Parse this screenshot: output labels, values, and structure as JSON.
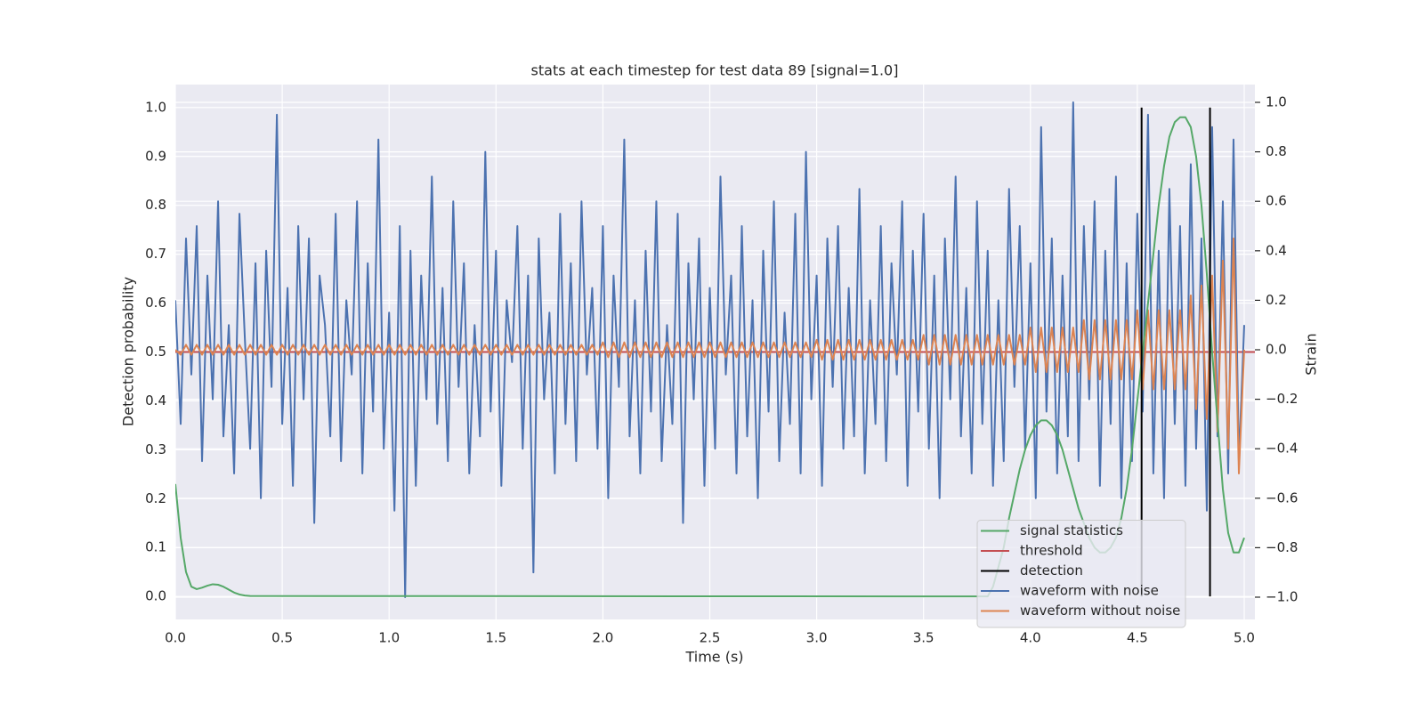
{
  "chart_data": {
    "type": "line",
    "title": "stats at each timestep for test data 89 [signal=1.0]",
    "xlabel": "Time (s)",
    "ylabel": "Detection probability",
    "y2label": "Strain",
    "xlim": [
      0,
      5.05
    ],
    "ylim": [
      -0.047,
      1.047
    ],
    "y2lim": [
      -1.09,
      1.072
    ],
    "xticks": [
      {
        "value": 0,
        "label": "0.0"
      },
      0.5,
      {
        "value": 1,
        "label": "1.0"
      },
      1.5,
      {
        "value": 2,
        "label": "2.0"
      },
      2.5,
      {
        "value": 3,
        "label": "3.0"
      },
      3.5,
      {
        "value": 4,
        "label": "4.0"
      },
      4.5,
      {
        "value": 5,
        "label": "5.0"
      }
    ],
    "yticks": [
      {
        "value": 0,
        "label": "0.0"
      },
      0.1,
      0.2,
      0.3,
      0.4,
      0.5,
      0.6,
      0.7,
      0.8,
      0.9,
      {
        "value": 1,
        "label": "1.0"
      }
    ],
    "y2ticks": [
      {
        "value": -1,
        "label": "−1.0"
      },
      {
        "value": -0.8,
        "label": "−0.8"
      },
      {
        "value": -0.6,
        "label": "−0.6"
      },
      {
        "value": -0.4,
        "label": "−0.4"
      },
      {
        "value": -0.2,
        "label": "−0.2"
      },
      {
        "value": 0,
        "label": "0.0"
      },
      0.2,
      0.4,
      0.6,
      0.8,
      {
        "value": 1,
        "label": "1.0"
      }
    ],
    "grid": true,
    "legend": "lower right",
    "x": [
      0,
      0.025,
      0.05,
      0.075,
      0.1,
      0.125,
      0.15,
      0.175,
      0.2,
      0.225,
      0.25,
      0.275,
      0.3,
      0.325,
      0.35,
      0.375,
      0.4,
      0.425,
      0.45,
      0.475,
      0.5,
      0.525,
      0.55,
      0.575,
      0.6,
      0.625,
      0.65,
      0.675,
      0.7,
      0.725,
      0.75,
      0.775,
      0.8,
      0.825,
      0.85,
      0.875,
      0.9,
      0.925,
      0.95,
      0.975,
      1,
      1.025,
      1.05,
      1.075,
      1.1,
      1.125,
      1.15,
      1.175,
      1.2,
      1.225,
      1.25,
      1.275,
      1.3,
      1.325,
      1.35,
      1.375,
      1.4,
      1.425,
      1.45,
      1.475,
      1.5,
      1.525,
      1.55,
      1.575,
      1.6,
      1.625,
      1.65,
      1.675,
      1.7,
      1.725,
      1.75,
      1.775,
      1.8,
      1.825,
      1.85,
      1.875,
      1.9,
      1.925,
      1.95,
      1.975,
      2,
      2.025,
      2.05,
      2.075,
      2.1,
      2.125,
      2.15,
      2.175,
      2.2,
      2.225,
      2.25,
      2.275,
      2.3,
      2.325,
      2.35,
      2.375,
      2.4,
      2.425,
      2.45,
      2.475,
      2.5,
      2.525,
      2.55,
      2.575,
      2.6,
      2.625,
      2.65,
      2.675,
      2.7,
      2.725,
      2.75,
      2.775,
      2.8,
      2.825,
      2.85,
      2.875,
      2.9,
      2.925,
      2.95,
      2.975,
      3,
      3.025,
      3.05,
      3.075,
      3.1,
      3.125,
      3.15,
      3.175,
      3.2,
      3.225,
      3.25,
      3.275,
      3.3,
      3.325,
      3.35,
      3.375,
      3.4,
      3.425,
      3.45,
      3.475,
      3.5,
      3.525,
      3.55,
      3.575,
      3.6,
      3.625,
      3.65,
      3.675,
      3.7,
      3.725,
      3.75,
      3.775,
      3.8,
      3.825,
      3.85,
      3.875,
      3.9,
      3.925,
      3.95,
      3.975,
      4,
      4.025,
      4.05,
      4.075,
      4.1,
      4.125,
      4.15,
      4.175,
      4.2,
      4.225,
      4.25,
      4.275,
      4.3,
      4.325,
      4.35,
      4.375,
      4.4,
      4.425,
      4.45,
      4.475,
      4.5,
      4.525,
      4.55,
      4.575,
      4.6,
      4.625,
      4.65,
      4.675,
      4.7,
      4.725,
      4.75,
      4.775,
      4.8,
      4.825,
      4.85,
      4.875,
      4.9,
      4.925,
      4.95,
      4.975,
      5
    ],
    "series": [
      {
        "name": "signal statistics",
        "color": "#55a868",
        "x": [
          0,
          0.025,
          0.05,
          0.075,
          0.1,
          0.125,
          0.15,
          0.175,
          0.2,
          0.225,
          0.25,
          0.275,
          0.3,
          0.325,
          0.35,
          3.8,
          3.825,
          3.85,
          3.875,
          3.9,
          3.925,
          3.95,
          3.975,
          4,
          4.025,
          4.05,
          4.075,
          4.1,
          4.125,
          4.15,
          4.175,
          4.2,
          4.225,
          4.25,
          4.275,
          4.3,
          4.325,
          4.35,
          4.375,
          4.4,
          4.425,
          4.45,
          4.475,
          4.5,
          4.525,
          4.55,
          4.575,
          4.6,
          4.625,
          4.65,
          4.675,
          4.7,
          4.725,
          4.75,
          4.775,
          4.8,
          4.825,
          4.85,
          4.875,
          4.9,
          4.925,
          4.95,
          4.975,
          5
        ],
        "values": [
          0.23,
          0.12,
          0.05,
          0.02,
          0.015,
          0.018,
          0.022,
          0.025,
          0.024,
          0.02,
          0.014,
          0.008,
          0.004,
          0.002,
          0.001,
          0,
          0.02,
          0.06,
          0.1,
          0.16,
          0.21,
          0.26,
          0.3,
          0.33,
          0.35,
          0.36,
          0.36,
          0.35,
          0.33,
          0.3,
          0.26,
          0.22,
          0.18,
          0.15,
          0.12,
          0.1,
          0.09,
          0.09,
          0.1,
          0.12,
          0.16,
          0.22,
          0.3,
          0.4,
          0.5,
          0.6,
          0.7,
          0.8,
          0.88,
          0.94,
          0.97,
          0.98,
          0.98,
          0.96,
          0.9,
          0.8,
          0.66,
          0.5,
          0.36,
          0.22,
          0.13,
          0.09,
          0.09,
          0.12
        ]
      },
      {
        "name": "threshold",
        "color": "#c44e52",
        "x": [
          0,
          5.05
        ],
        "values": [
          0.5,
          0.5
        ]
      },
      {
        "name": "detection",
        "color": "#000000",
        "x": [
          4.52,
          4.84
        ],
        "ymin": [
          0,
          0
        ],
        "ymax": [
          1,
          1
        ]
      },
      {
        "name": "waveform with noise",
        "color": "#4c72b0",
        "axis": "y2",
        "values": [
          0.2,
          -0.3,
          0.45,
          -0.1,
          0.5,
          -0.45,
          0.3,
          -0.2,
          0.6,
          -0.35,
          0.1,
          -0.5,
          0.55,
          0.05,
          -0.4,
          0.35,
          -0.6,
          0.4,
          -0.15,
          0.95,
          -0.3,
          0.25,
          -0.55,
          0.5,
          -0.2,
          0.45,
          -0.7,
          0.3,
          0.1,
          -0.35,
          0.55,
          -0.45,
          0.2,
          -0.1,
          0.6,
          -0.5,
          0.35,
          -0.25,
          0.85,
          -0.4,
          0.15,
          -0.65,
          0.5,
          -1.0,
          0.4,
          -0.55,
          0.3,
          -0.2,
          0.7,
          -0.3,
          0.25,
          -0.45,
          0.6,
          -0.15,
          0.35,
          -0.5,
          0.1,
          -0.35,
          0.8,
          -0.25,
          0.4,
          -0.55,
          0.2,
          -0.05,
          0.5,
          -0.4,
          0.3,
          -0.9,
          0.45,
          -0.2,
          0.15,
          -0.5,
          0.55,
          -0.3,
          0.35,
          -0.45,
          0.6,
          -0.1,
          0.25,
          -0.4,
          0.5,
          -0.6,
          0.3,
          -0.15,
          0.85,
          -0.35,
          0.2,
          -0.5,
          0.4,
          -0.25,
          0.6,
          -0.45,
          0.1,
          -0.3,
          0.55,
          -0.7,
          0.35,
          -0.2,
          0.45,
          -0.55,
          0.25,
          -0.4,
          0.7,
          -0.1,
          0.3,
          -0.5,
          0.5,
          -0.35,
          0.2,
          -0.6,
          0.4,
          -0.25,
          0.6,
          -0.45,
          0.15,
          -0.3,
          0.55,
          -0.5,
          0.8,
          -0.2,
          0.3,
          -0.55,
          0.45,
          -0.15,
          0.5,
          -0.4,
          0.25,
          -0.35,
          0.65,
          -0.5,
          0.2,
          -0.3,
          0.5,
          -0.45,
          0.35,
          -0.1,
          0.6,
          -0.55,
          0.4,
          -0.25,
          0.55,
          -0.4,
          0.3,
          -0.6,
          0.45,
          -0.2,
          0.7,
          -0.35,
          0.25,
          -0.5,
          0.6,
          -0.3,
          0.4,
          -0.55,
          0.2,
          -0.45,
          0.65,
          -0.15,
          0.5,
          -0.4,
          0.35,
          -0.6,
          0.9,
          -0.25,
          0.45,
          -0.5,
          0.3,
          -0.35,
          1.0,
          -0.45,
          0.5,
          -0.2,
          0.6,
          -0.55,
          0.4,
          -0.3,
          0.7,
          -0.6,
          0.35,
          -0.45,
          0.55,
          -0.25,
          0.95,
          -0.5,
          0.4,
          -0.6,
          0.65,
          -0.3,
          0.5,
          -0.55,
          0.75,
          -0.4,
          0.45,
          -0.65,
          0.9,
          -0.35,
          0.6,
          -0.5,
          0.85,
          -0.45,
          0.1
        ]
      },
      {
        "name": "waveform without noise",
        "color": "#dd8452",
        "axis": "y2",
        "values": [
          0,
          -0.02,
          0.02,
          -0.02,
          0.02,
          -0.02,
          0.02,
          -0.02,
          0.02,
          -0.02,
          0.02,
          -0.02,
          0.02,
          -0.02,
          0.02,
          -0.02,
          0.02,
          -0.02,
          0.02,
          -0.02,
          0.02,
          -0.02,
          0.02,
          -0.02,
          0.02,
          -0.02,
          0.02,
          -0.02,
          0.02,
          -0.02,
          0.02,
          -0.02,
          0.02,
          -0.02,
          0.02,
          -0.02,
          0.02,
          -0.02,
          0.02,
          -0.02,
          0.02,
          -0.02,
          0.02,
          -0.02,
          0.02,
          -0.02,
          0.02,
          -0.02,
          0.02,
          -0.02,
          0.02,
          -0.02,
          0.02,
          -0.02,
          0.02,
          -0.02,
          0.02,
          -0.02,
          0.02,
          -0.02,
          0.02,
          -0.02,
          0.02,
          -0.02,
          0.02,
          -0.02,
          0.02,
          -0.02,
          0.02,
          -0.02,
          0.02,
          -0.02,
          0.02,
          -0.02,
          0.02,
          -0.02,
          0.02,
          -0.02,
          0.02,
          -0.02,
          0.03,
          -0.03,
          0.03,
          -0.03,
          0.03,
          -0.03,
          0.03,
          -0.03,
          0.03,
          -0.03,
          0.03,
          -0.03,
          0.03,
          -0.03,
          0.03,
          -0.03,
          0.03,
          -0.03,
          0.03,
          -0.03,
          0.03,
          -0.03,
          0.03,
          -0.03,
          0.03,
          -0.03,
          0.03,
          -0.03,
          0.03,
          -0.03,
          0.03,
          -0.03,
          0.03,
          -0.03,
          0.03,
          -0.03,
          0.03,
          -0.03,
          0.03,
          -0.03,
          0.04,
          -0.04,
          0.04,
          -0.04,
          0.04,
          -0.04,
          0.04,
          -0.04,
          0.04,
          -0.04,
          0.04,
          -0.04,
          0.04,
          -0.04,
          0.04,
          -0.04,
          0.04,
          -0.04,
          0.04,
          -0.04,
          0.06,
          -0.06,
          0.06,
          -0.06,
          0.06,
          -0.06,
          0.06,
          -0.06,
          0.06,
          -0.06,
          0.06,
          -0.06,
          0.06,
          -0.06,
          0.06,
          -0.06,
          0.06,
          -0.06,
          0.06,
          -0.06,
          0.09,
          -0.09,
          0.09,
          -0.09,
          0.09,
          -0.09,
          0.09,
          -0.09,
          0.09,
          -0.09,
          0.12,
          -0.12,
          0.12,
          -0.12,
          0.12,
          -0.12,
          0.12,
          -0.12,
          0.12,
          -0.12,
          0.16,
          -0.16,
          0.16,
          -0.16,
          0.16,
          -0.16,
          0.16,
          -0.16,
          0.16,
          -0.16,
          0.22,
          -0.24,
          0.26,
          -0.28,
          0.3,
          -0.33,
          0.36,
          -0.4,
          0.45,
          -0.5,
          0
        ]
      }
    ]
  }
}
